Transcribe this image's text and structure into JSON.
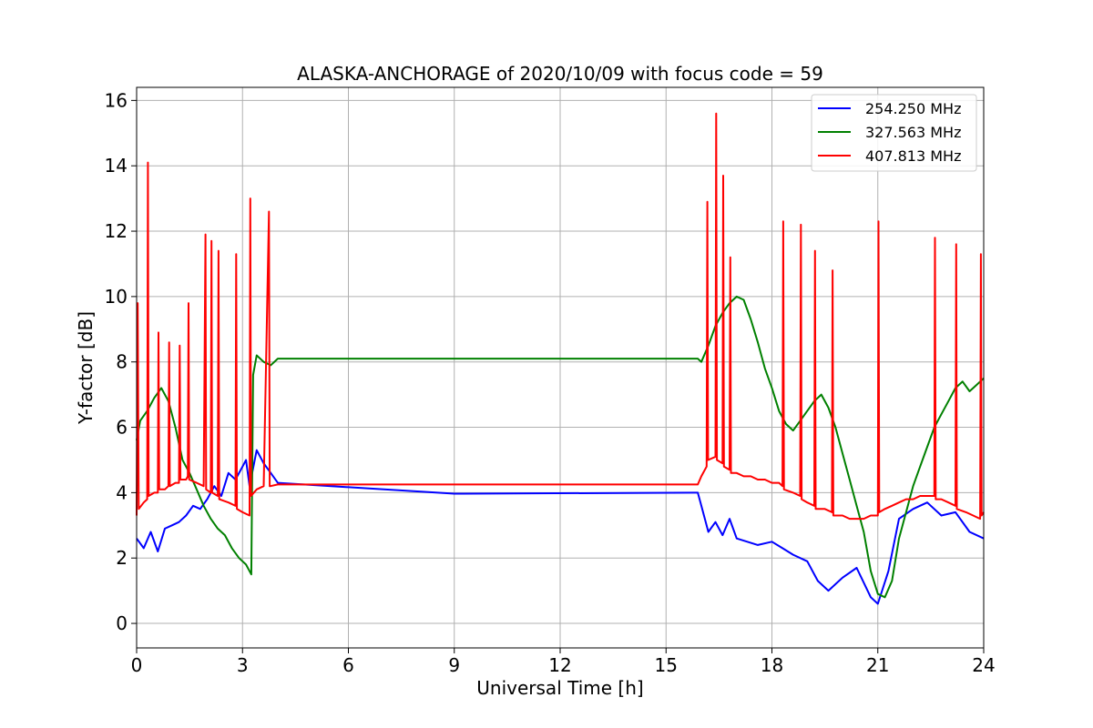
{
  "chart_data": {
    "type": "line",
    "title": "ALASKA-ANCHORAGE of 2020/10/09 with focus code = 59",
    "xlabel": "Universal Time [h]",
    "ylabel": "Y-factor [dB]",
    "xlim": [
      0,
      24
    ],
    "ylim": [
      -0.75,
      16.4
    ],
    "xticks": [
      0,
      3,
      6,
      9,
      12,
      15,
      18,
      21,
      24
    ],
    "yticks": [
      0,
      2,
      4,
      6,
      8,
      10,
      12,
      14,
      16
    ],
    "xtick_labels": [
      "0",
      "3",
      "6",
      "9",
      "12",
      "15",
      "18",
      "21",
      "24"
    ],
    "ytick_labels": [
      "0",
      "2",
      "4",
      "6",
      "8",
      "10",
      "12",
      "14",
      "16"
    ],
    "grid": true,
    "legend_position": "top-right",
    "series": [
      {
        "name": "254.250 MHz",
        "color": "#0000ff",
        "x": [
          0.0,
          0.2,
          0.4,
          0.6,
          0.8,
          1.0,
          1.2,
          1.4,
          1.6,
          1.8,
          2.0,
          2.2,
          2.4,
          2.6,
          2.8,
          3.0,
          3.1,
          3.2,
          3.4,
          3.6,
          3.8,
          4.0,
          9.0,
          15.9,
          16.0,
          16.2,
          16.4,
          16.6,
          16.8,
          17.0,
          17.3,
          17.6,
          18.0,
          18.3,
          18.6,
          19.0,
          19.3,
          19.6,
          20.0,
          20.4,
          20.8,
          21.0,
          21.3,
          21.6,
          22.0,
          22.4,
          22.8,
          23.2,
          23.6,
          24.0
        ],
        "y": [
          2.6,
          2.3,
          2.8,
          2.2,
          2.9,
          3.0,
          3.1,
          3.3,
          3.6,
          3.5,
          3.8,
          4.2,
          3.9,
          4.6,
          4.4,
          4.8,
          5.0,
          4.2,
          5.3,
          4.9,
          4.6,
          4.3,
          3.97,
          4.0,
          3.6,
          2.8,
          3.1,
          2.7,
          3.2,
          2.6,
          2.5,
          2.4,
          2.5,
          2.3,
          2.1,
          1.9,
          1.3,
          1.0,
          1.4,
          1.7,
          0.8,
          0.6,
          1.6,
          3.2,
          3.5,
          3.7,
          3.3,
          3.4,
          2.8,
          2.6
        ]
      },
      {
        "name": "327.563 MHz",
        "color": "#008000",
        "x": [
          0.0,
          0.1,
          0.3,
          0.5,
          0.7,
          0.9,
          1.1,
          1.3,
          1.5,
          1.7,
          1.9,
          2.1,
          2.3,
          2.5,
          2.7,
          2.9,
          3.1,
          3.25,
          3.3,
          3.4,
          3.6,
          3.8,
          4.0,
          9.0,
          15.9,
          16.0,
          16.2,
          16.4,
          16.6,
          16.8,
          17.0,
          17.2,
          17.4,
          17.6,
          17.8,
          18.0,
          18.2,
          18.4,
          18.6,
          18.8,
          19.0,
          19.2,
          19.4,
          19.6,
          19.8,
          20.0,
          20.2,
          20.4,
          20.6,
          20.8,
          21.0,
          21.2,
          21.4,
          21.6,
          21.8,
          22.0,
          22.2,
          22.4,
          22.6,
          22.8,
          23.0,
          23.2,
          23.4,
          23.6,
          23.8,
          24.0
        ],
        "y": [
          5.6,
          6.2,
          6.5,
          6.9,
          7.2,
          6.8,
          6.0,
          5.0,
          4.6,
          4.1,
          3.6,
          3.2,
          2.9,
          2.7,
          2.3,
          2.0,
          1.8,
          1.5,
          7.6,
          8.2,
          8.0,
          7.9,
          8.1,
          8.1,
          8.1,
          8.0,
          8.5,
          9.1,
          9.5,
          9.8,
          10.0,
          9.9,
          9.3,
          8.6,
          7.8,
          7.2,
          6.5,
          6.1,
          5.9,
          6.2,
          6.5,
          6.8,
          7.0,
          6.6,
          6.0,
          5.2,
          4.4,
          3.6,
          2.8,
          1.6,
          0.9,
          0.8,
          1.3,
          2.6,
          3.4,
          4.2,
          4.8,
          5.4,
          6.0,
          6.4,
          6.8,
          7.2,
          7.4,
          7.1,
          7.3,
          7.5
        ]
      },
      {
        "name": "407.813 MHz",
        "color": "#ff0000",
        "x": [
          0.0,
          0.03,
          0.06,
          0.2,
          0.3,
          0.32,
          0.34,
          0.5,
          0.6,
          0.62,
          0.64,
          0.8,
          0.9,
          0.92,
          0.94,
          1.1,
          1.2,
          1.22,
          1.24,
          1.4,
          1.45,
          1.47,
          1.49,
          1.7,
          1.9,
          1.95,
          1.97,
          2.1,
          2.12,
          2.14,
          2.3,
          2.32,
          2.34,
          2.6,
          2.8,
          2.82,
          2.84,
          3.0,
          3.2,
          3.22,
          3.24,
          3.4,
          3.6,
          3.75,
          3.77,
          3.79,
          4.0,
          9.0,
          15.9,
          16.0,
          16.15,
          16.17,
          16.19,
          16.4,
          16.42,
          16.44,
          16.6,
          16.62,
          16.64,
          16.8,
          16.82,
          16.84,
          17.0,
          17.2,
          17.4,
          17.6,
          17.8,
          18.0,
          18.2,
          18.3,
          18.32,
          18.34,
          18.6,
          18.8,
          18.82,
          18.84,
          19.0,
          19.2,
          19.22,
          19.24,
          19.5,
          19.7,
          19.72,
          19.74,
          20.0,
          20.2,
          20.4,
          20.6,
          20.8,
          21.0,
          21.02,
          21.04,
          21.2,
          21.4,
          21.6,
          21.8,
          22.0,
          22.2,
          22.4,
          22.6,
          22.62,
          22.64,
          22.8,
          23.0,
          23.2,
          23.22,
          23.24,
          23.5,
          23.7,
          23.9,
          23.92,
          23.94,
          24.0
        ],
        "y": [
          3.3,
          9.8,
          3.5,
          3.7,
          3.8,
          14.1,
          3.9,
          4.0,
          4.0,
          8.9,
          4.1,
          4.1,
          4.2,
          8.6,
          4.2,
          4.3,
          4.3,
          8.5,
          4.4,
          4.4,
          4.5,
          9.8,
          4.4,
          4.3,
          4.2,
          11.9,
          4.1,
          4.0,
          11.7,
          4.0,
          3.9,
          11.4,
          3.8,
          3.7,
          3.6,
          11.3,
          3.5,
          3.4,
          3.3,
          13.0,
          3.9,
          4.1,
          4.2,
          12.6,
          4.2,
          4.2,
          4.25,
          4.25,
          4.25,
          4.5,
          4.8,
          12.9,
          5.0,
          5.1,
          15.6,
          5.0,
          4.9,
          13.7,
          4.8,
          4.7,
          11.2,
          4.6,
          4.6,
          4.5,
          4.5,
          4.4,
          4.4,
          4.3,
          4.3,
          4.2,
          12.3,
          4.1,
          4.0,
          3.9,
          12.2,
          3.8,
          3.7,
          3.6,
          11.4,
          3.5,
          3.5,
          3.4,
          10.8,
          3.3,
          3.3,
          3.2,
          3.2,
          3.2,
          3.3,
          3.3,
          12.3,
          3.4,
          3.5,
          3.6,
          3.7,
          3.8,
          3.8,
          3.9,
          3.9,
          3.9,
          11.8,
          3.8,
          3.8,
          3.7,
          3.6,
          11.6,
          3.5,
          3.4,
          3.3,
          3.2,
          11.3,
          3.3,
          3.4
        ]
      }
    ]
  }
}
